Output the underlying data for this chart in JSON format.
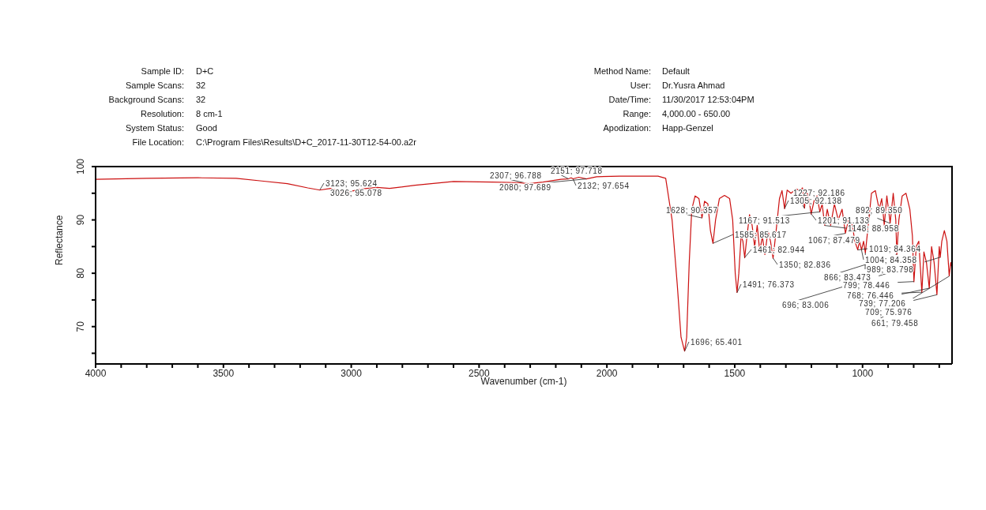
{
  "chart_data": {
    "type": "line",
    "xlabel": "Wavenumber (cm-1)",
    "ylabel": "Reflectance",
    "xlim": [
      4000,
      650
    ],
    "ylim": [
      63,
      100
    ],
    "xticks": [
      4000,
      {
        "value": 3900,
        "label": null
      },
      {
        "value": 3800,
        "label": null
      },
      {
        "value": 3700,
        "label": null
      },
      {
        "value": 3600,
        "label": null
      },
      3500,
      {
        "value": 3400,
        "label": null
      },
      {
        "value": 3300,
        "label": null
      },
      {
        "value": 3200,
        "label": null
      },
      {
        "value": 3100,
        "label": null
      },
      3000,
      {
        "value": 2900,
        "label": null
      },
      {
        "value": 2800,
        "label": null
      },
      {
        "value": 2700,
        "label": null
      },
      {
        "value": 2600,
        "label": null
      },
      2500,
      {
        "value": 2400,
        "label": null
      },
      {
        "value": 2300,
        "label": null
      },
      {
        "value": 2200,
        "label": null
      },
      {
        "value": 2100,
        "label": null
      },
      2000,
      {
        "value": 1900,
        "label": null
      },
      {
        "value": 1800,
        "label": null
      },
      {
        "value": 1700,
        "label": null
      },
      {
        "value": 1600,
        "label": null
      },
      1500,
      {
        "value": 1400,
        "label": null
      },
      {
        "value": 1300,
        "label": null
      },
      {
        "value": 1200,
        "label": null
      },
      {
        "value": 1100,
        "label": null
      },
      1000,
      {
        "value": 900,
        "label": null
      },
      {
        "value": 800,
        "label": null
      },
      {
        "value": 700,
        "label": null
      }
    ],
    "yticks": [
      100,
      {
        "value": 95,
        "label": null
      },
      90,
      {
        "value": 85,
        "label": null
      },
      80,
      {
        "value": 75,
        "label": null
      },
      70,
      {
        "value": 65,
        "label": null
      }
    ],
    "grid": false,
    "marker": "none",
    "line_style": "solid",
    "series": [
      {
        "color": "#cc1111",
        "x": [
          4000,
          3800,
          3600,
          3450,
          3350,
          3250,
          3170,
          3123,
          3080,
          3026,
          2960,
          2900,
          2850,
          2750,
          2600,
          2450,
          2350,
          2307,
          2250,
          2180,
          2151,
          2140,
          2132,
          2110,
          2080,
          2040,
          1950,
          1800,
          1770,
          1745,
          1725,
          1710,
          1696,
          1688,
          1678,
          1668,
          1655,
          1640,
          1628,
          1618,
          1605,
          1595,
          1585,
          1575,
          1560,
          1540,
          1520,
          1508,
          1498,
          1491,
          1484,
          1475,
          1468,
          1461,
          1452,
          1442,
          1432,
          1422,
          1412,
          1402,
          1392,
          1382,
          1370,
          1360,
          1350,
          1338,
          1325,
          1315,
          1305,
          1295,
          1280,
          1260,
          1245,
          1235,
          1227,
          1220,
          1210,
          1201,
          1190,
          1178,
          1167,
          1158,
          1148,
          1138,
          1125,
          1110,
          1095,
          1080,
          1067,
          1055,
          1040,
          1030,
          1019,
          1012,
          1004,
          996,
          989,
          980,
          965,
          950,
          935,
          925,
          915,
          905,
          892,
          880,
          870,
          866,
          858,
          845,
          830,
          815,
          805,
          799,
          790,
          780,
          768,
          760,
          750,
          739,
          730,
          720,
          709,
          700,
          696,
          690,
          680,
          670,
          661,
          655,
          650
        ],
        "values": [
          97.6,
          97.8,
          97.9,
          97.8,
          97.3,
          96.8,
          96.0,
          95.6,
          95.9,
          95.1,
          95.8,
          96.1,
          95.9,
          96.5,
          97.2,
          97.1,
          97.0,
          96.8,
          97.1,
          97.6,
          97.7,
          97.9,
          97.7,
          98.0,
          97.7,
          98.1,
          98.2,
          98.2,
          97.8,
          90,
          78,
          68,
          65.4,
          68,
          82,
          92,
          94.5,
          94,
          90.4,
          93.5,
          93,
          88,
          85.6,
          90,
          94,
          94.6,
          94,
          90,
          80,
          76.4,
          80,
          87,
          86,
          82.9,
          87,
          91,
          89,
          85,
          89,
          84,
          87,
          83.5,
          88,
          86,
          82.8,
          88,
          94,
          95.5,
          92.1,
          95.6,
          95,
          95.8,
          95.5,
          96.0,
          92.2,
          95.5,
          94,
          91.1,
          93.5,
          94.5,
          91.5,
          93,
          89.0,
          92,
          89,
          93,
          90,
          92,
          87.5,
          90,
          89,
          86,
          84.4,
          86,
          84.4,
          86,
          83.8,
          88,
          95,
          95.5,
          92,
          94,
          89,
          94.5,
          89.4,
          95,
          90,
          83.5,
          90,
          94.5,
          95,
          92,
          87,
          78.4,
          85,
          86,
          76.4,
          84,
          82,
          77.2,
          85,
          82,
          76.0,
          85,
          83.0,
          86,
          88,
          86,
          79.5,
          82,
          81
        ]
      }
    ],
    "annotations": [
      "Sample ID:",
      "D+C",
      "Sample Scans:",
      "32",
      "Background Scans:",
      "32",
      "Resolution:",
      "8 cm-1",
      "System Status:",
      "Good",
      "File Location:",
      "C:\\Program Files\\Results\\D+C_2017-11-30T12-54-00.a2r",
      "Method Name:",
      "Default",
      "User:",
      "Dr.Yusra Ahmad",
      "Date/Time:",
      "11/30/2017  12:53:04PM",
      "Range:",
      "4,000.00 - 650.00",
      "Apodization:",
      "Happ-Genzel",
      {
        "text": "3123; 95.624",
        "x": 3123,
        "y": 95.624
      },
      {
        "text": "3026; 95.078",
        "x": 3026,
        "y": 95.078
      },
      {
        "text": "2307; 96.788",
        "x": 2307,
        "y": 96.788
      },
      {
        "text": "2151; 97.718",
        "x": 2151,
        "y": 97.718
      },
      {
        "text": "2080; 97.689",
        "x": 2080,
        "y": 97.689
      },
      {
        "text": "2132; 97.654",
        "x": 2132,
        "y": 97.654
      },
      {
        "text": "1628; 90.357",
        "x": 1628,
        "y": 90.357
      },
      {
        "text": "1696; 65.401",
        "x": 1696,
        "y": 65.401
      },
      {
        "text": "1585; 85.617",
        "x": 1585,
        "y": 85.617
      },
      {
        "text": "1491; 76.373",
        "x": 1491,
        "y": 76.373
      },
      {
        "text": "1461; 82.944",
        "x": 1461,
        "y": 82.944
      },
      {
        "text": "1350; 82.836",
        "x": 1350,
        "y": 82.836
      },
      {
        "text": "1167; 91.513",
        "x": 1167,
        "y": 91.513
      },
      {
        "text": "1227; 92.186",
        "x": 1227,
        "y": 92.186
      },
      {
        "text": "1305; 92.138",
        "x": 1305,
        "y": 92.138
      },
      {
        "text": "1201; 91.133",
        "x": 1201,
        "y": 91.133
      },
      {
        "text": "1148; 88.958",
        "x": 1148,
        "y": 88.958
      },
      {
        "text": "1067; 87.479",
        "x": 1067,
        "y": 87.479
      },
      {
        "text": "892; 89.350",
        "x": 892,
        "y": 89.35
      },
      {
        "text": "1019; 84.364",
        "x": 1019,
        "y": 84.364
      },
      {
        "text": "1004; 84.358",
        "x": 1004,
        "y": 84.358
      },
      {
        "text": "989; 83.798",
        "x": 989,
        "y": 83.798
      },
      {
        "text": "866; 83.473",
        "x": 866,
        "y": 83.473
      },
      {
        "text": "799; 78.446",
        "x": 799,
        "y": 78.446
      },
      {
        "text": "768; 76.446",
        "x": 768,
        "y": 76.446
      },
      {
        "text": "696; 83.006",
        "x": 696,
        "y": 83.006
      },
      {
        "text": "739; 77.206",
        "x": 739,
        "y": 77.206
      },
      {
        "text": "709; 75.976",
        "x": 709,
        "y": 75.976
      },
      {
        "text": "661; 79.458",
        "x": 661,
        "y": 79.458
      }
    ]
  }
}
